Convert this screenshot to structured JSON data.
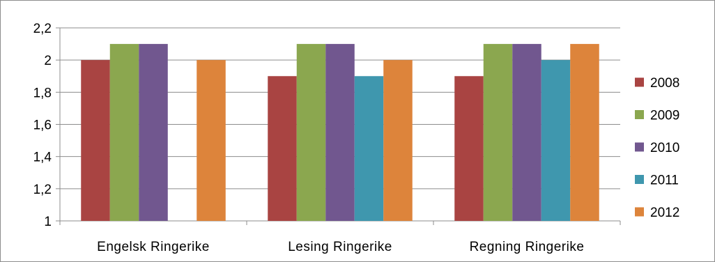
{
  "chart_data": {
    "type": "bar",
    "categories": [
      "Engelsk Ringerike",
      "Lesing Ringerike",
      "Regning Ringerike"
    ],
    "series": [
      {
        "name": "2008",
        "color": "#A94442",
        "values": [
          2.0,
          1.9,
          1.9
        ]
      },
      {
        "name": "2009",
        "color": "#8BA74F",
        "values": [
          2.1,
          2.1,
          2.1
        ]
      },
      {
        "name": "2010",
        "color": "#71578F",
        "values": [
          2.1,
          2.1,
          2.1
        ]
      },
      {
        "name": "2011",
        "color": "#3F97AE",
        "values": [
          null,
          1.9,
          2.0
        ]
      },
      {
        "name": "2012",
        "color": "#DD843B",
        "values": [
          2.0,
          2.0,
          2.1
        ]
      }
    ],
    "ylim": [
      1,
      2.2
    ],
    "yticks": [
      "1",
      "1,2",
      "1,4",
      "1,6",
      "1,8",
      "2",
      "2,2"
    ],
    "grid": true,
    "legend": "right"
  }
}
